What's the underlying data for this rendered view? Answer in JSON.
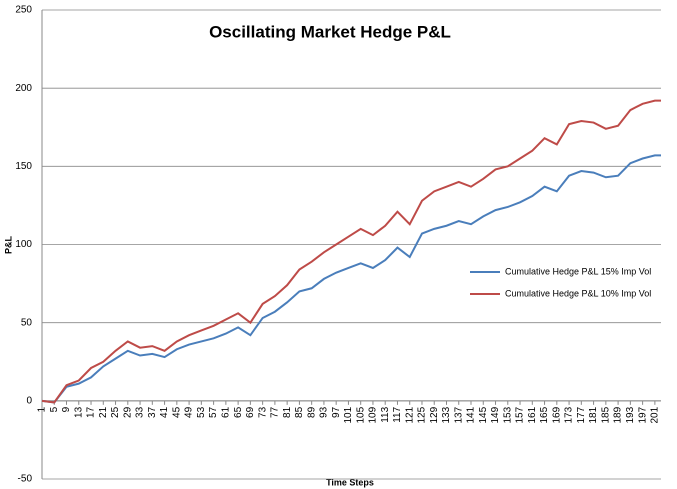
{
  "chart_data": {
    "type": "line",
    "title": "Oscillating Market Hedge P&L",
    "x_label": "Time Steps",
    "y_label": "P&L",
    "x": [
      1,
      5,
      9,
      13,
      17,
      21,
      25,
      29,
      33,
      37,
      41,
      45,
      49,
      53,
      57,
      61,
      65,
      69,
      73,
      77,
      81,
      85,
      89,
      93,
      97,
      101,
      105,
      109,
      113,
      117,
      121,
      125,
      129,
      133,
      137,
      141,
      145,
      149,
      153,
      157,
      161,
      165,
      169,
      173,
      177,
      181,
      185,
      189,
      193,
      197,
      201,
      203
    ],
    "series": [
      {
        "name": "Cumulative Hedge P&L 15% Imp Vol",
        "color": "#4a7ebb",
        "values": [
          0,
          -1,
          9,
          11,
          15,
          22,
          27,
          32,
          29,
          30,
          28,
          33,
          36,
          38,
          40,
          43,
          47,
          42,
          53,
          57,
          63,
          70,
          72,
          78,
          82,
          85,
          88,
          85,
          90,
          98,
          92,
          107,
          110,
          112,
          115,
          113,
          118,
          122,
          124,
          127,
          131,
          137,
          134,
          144,
          147,
          146,
          143,
          144,
          152,
          155,
          157,
          157
        ]
      },
      {
        "name": "Cumulative Hedge P&L 10% Imp Vol",
        "color": "#be4b48",
        "values": [
          0,
          -1,
          10,
          13,
          21,
          25,
          32,
          38,
          34,
          35,
          32,
          38,
          42,
          45,
          48,
          52,
          56,
          50,
          62,
          67,
          74,
          84,
          89,
          95,
          100,
          105,
          110,
          106,
          112,
          121,
          113,
          128,
          134,
          137,
          140,
          137,
          142,
          148,
          150,
          155,
          160,
          168,
          164,
          177,
          179,
          178,
          174,
          176,
          186,
          190,
          192,
          192
        ]
      }
    ],
    "xlim": [
      1,
      203
    ],
    "xticks": [
      1,
      5,
      9,
      13,
      17,
      21,
      25,
      29,
      33,
      37,
      41,
      45,
      49,
      53,
      57,
      61,
      65,
      69,
      73,
      77,
      81,
      85,
      89,
      93,
      97,
      101,
      105,
      109,
      113,
      117,
      121,
      125,
      129,
      133,
      137,
      141,
      145,
      149,
      153,
      157,
      161,
      165,
      169,
      173,
      177,
      181,
      185,
      189,
      193,
      197,
      201
    ],
    "ylim": [
      -50,
      250
    ],
    "yticks": [
      -50,
      0,
      50,
      100,
      150,
      200,
      250
    ],
    "grid": true
  }
}
